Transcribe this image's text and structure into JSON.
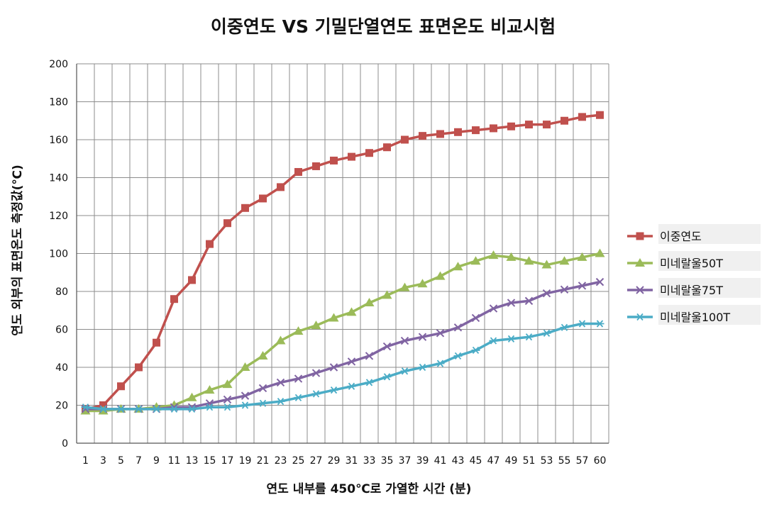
{
  "chart_data": {
    "type": "line",
    "title": "이중연도 VS 기밀단열연도 표면온도 비교시험",
    "xlabel": "연도 내부를 450℃로 가열한 시간 (분)",
    "ylabel": "연도 외부의 표면온도 측정값(℃)",
    "ylim": [
      0,
      200
    ],
    "yticks": [
      "0",
      "20",
      "40",
      "60",
      "80",
      "100",
      "120",
      "140",
      "160",
      "180",
      "200"
    ],
    "x": [
      1,
      3,
      5,
      7,
      9,
      11,
      13,
      15,
      17,
      19,
      21,
      23,
      25,
      27,
      29,
      31,
      33,
      35,
      37,
      39,
      41,
      43,
      45,
      47,
      49,
      51,
      53,
      55,
      57,
      60
    ],
    "xticks": [
      "1",
      "3",
      "5",
      "7",
      "9",
      "11",
      "13",
      "15",
      "17",
      "19",
      "21",
      "23",
      "25",
      "27",
      "29",
      "31",
      "33",
      "35",
      "37",
      "39",
      "41",
      "43",
      "45",
      "47",
      "49",
      "51",
      "53",
      "55",
      "57",
      "60"
    ],
    "grid": true,
    "legend_position": "right",
    "series": [
      {
        "name": "이중연도",
        "color": "#c0504d",
        "marker": "square",
        "values": [
          18,
          20,
          30,
          40,
          53,
          76,
          86,
          105,
          116,
          124,
          129,
          135,
          143,
          146,
          149,
          151,
          153,
          156,
          160,
          162,
          163,
          164,
          165,
          166,
          167,
          168,
          168,
          170,
          172,
          173
        ]
      },
      {
        "name": "미네랄울50T",
        "color": "#9bbb59",
        "marker": "triangle",
        "values": [
          17,
          17,
          18,
          18,
          19,
          20,
          24,
          28,
          31,
          40,
          46,
          54,
          59,
          62,
          66,
          69,
          74,
          78,
          82,
          84,
          88,
          93,
          96,
          99,
          98,
          96,
          94,
          96,
          98,
          100
        ]
      },
      {
        "name": "미네랄울75T",
        "color": "#8064a2",
        "marker": "x",
        "values": [
          18,
          18,
          18,
          18,
          18,
          19,
          19,
          21,
          23,
          25,
          29,
          32,
          34,
          37,
          40,
          43,
          46,
          51,
          54,
          56,
          58,
          61,
          66,
          71,
          74,
          75,
          79,
          81,
          83,
          85
        ]
      },
      {
        "name": "미네랄울100T",
        "color": "#4bacc6",
        "marker": "asterisk",
        "values": [
          19,
          18,
          18,
          18,
          18,
          18,
          18,
          19,
          19,
          20,
          21,
          22,
          24,
          26,
          28,
          30,
          32,
          35,
          38,
          40,
          42,
          46,
          49,
          54,
          55,
          56,
          58,
          61,
          63,
          63
        ]
      }
    ]
  }
}
